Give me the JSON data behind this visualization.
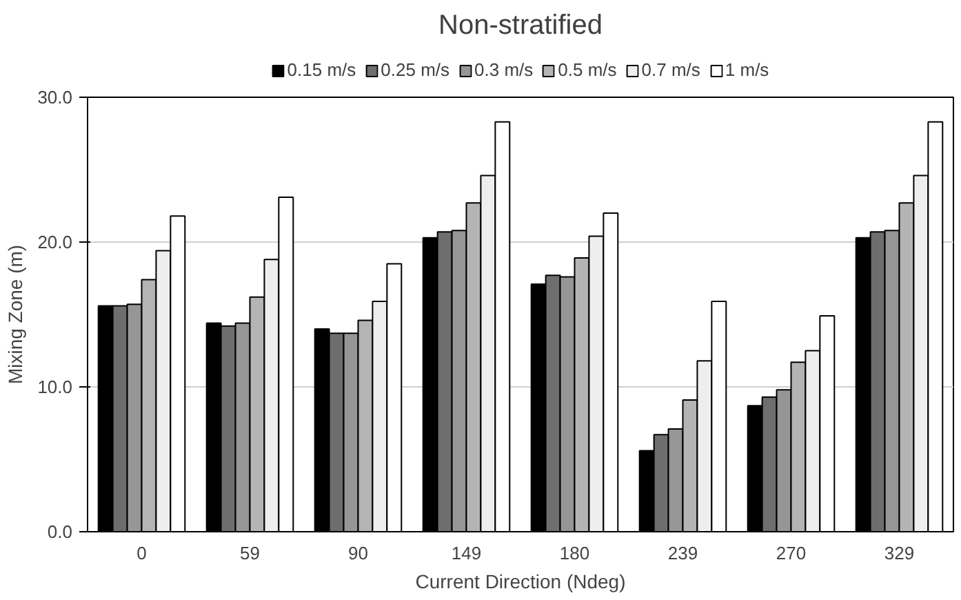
{
  "chart_data": {
    "type": "bar",
    "title": "Non-stratified",
    "xlabel": "Current Direction (Ndeg)",
    "ylabel": "Mixing Zone (m)",
    "categories": [
      "0",
      "59",
      "90",
      "149",
      "180",
      "239",
      "270",
      "329"
    ],
    "series": [
      {
        "name": "0.15 m/s",
        "color": "#000000",
        "values": [
          15.6,
          14.4,
          14.0,
          20.3,
          17.1,
          5.6,
          8.7,
          20.3
        ]
      },
      {
        "name": "0.25 m/s",
        "color": "#6e6e6e",
        "values": [
          15.6,
          14.2,
          13.7,
          20.7,
          17.7,
          6.7,
          9.3,
          20.7
        ]
      },
      {
        "name": "0.3 m/s",
        "color": "#969696",
        "values": [
          15.7,
          14.4,
          13.7,
          20.8,
          17.6,
          7.1,
          9.8,
          20.8
        ]
      },
      {
        "name": "0.5 m/s",
        "color": "#b4b4b4",
        "values": [
          17.4,
          16.2,
          14.6,
          22.7,
          18.9,
          9.1,
          11.7,
          22.7
        ]
      },
      {
        "name": "0.7 m/s",
        "color": "#eeeeee",
        "values": [
          19.4,
          18.8,
          15.9,
          24.6,
          20.4,
          11.8,
          12.5,
          24.6
        ]
      },
      {
        "name": "1 m/s",
        "color": "#ffffff",
        "values": [
          21.8,
          23.1,
          18.5,
          28.3,
          22.0,
          15.9,
          14.9,
          28.3
        ]
      }
    ],
    "ylim": [
      0,
      30
    ],
    "yticks": [
      {
        "value": 0,
        "label": "0.0"
      },
      {
        "value": 10,
        "label": "10.0"
      },
      {
        "value": 20,
        "label": "20.0"
      },
      {
        "value": 30,
        "label": "30.0"
      }
    ],
    "grid": "y",
    "legend": "top"
  }
}
